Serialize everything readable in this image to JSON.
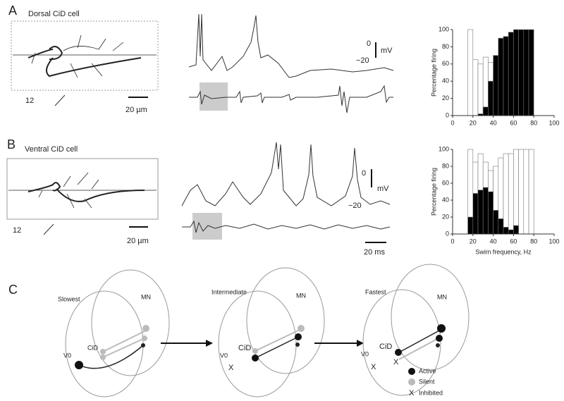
{
  "panel_a": {
    "letter": "A",
    "cell": "Dorsal CiD cell",
    "segment": "12",
    "scale": "20 µm",
    "v_top": "0",
    "v_bottom": "−20",
    "v_unit": "mV"
  },
  "panel_b": {
    "letter": "B",
    "cell": "Ventral CiD cell",
    "segment": "12",
    "scale": "20 µm",
    "v_top": "0",
    "v_bottom": "−20",
    "v_unit": "mV",
    "time_scale": "20 ms"
  },
  "panel_c": {
    "letter": "C",
    "diagrams": [
      {
        "title": "Slowest",
        "mn": "MN",
        "cid": "CiD",
        "v0": "V0"
      },
      {
        "title": "Intermediate",
        "mn": "MN",
        "cid": "CiD",
        "v0": "V0",
        "inhibited": "X"
      },
      {
        "title": "Fastest",
        "mn": "MN",
        "cid": "CiD",
        "v0": "V0",
        "inhibited": "X",
        "cid_inhibited": "X"
      }
    ],
    "legend": {
      "active": "Active",
      "silent": "Silent",
      "inhibited_mark": "X",
      "inhibited": "Inhibited"
    }
  },
  "chart_data": [
    {
      "type": "histogram",
      "ylabel": "Percentage firing",
      "bins": [
        15,
        20,
        25,
        30,
        35,
        40,
        45,
        50,
        55,
        60,
        65,
        70,
        75,
        80
      ],
      "series": [
        {
          "color": "#ffffff",
          "values": [
            100,
            65,
            60,
            68,
            62,
            45,
            40,
            30,
            20,
            15,
            10,
            5,
            0
          ]
        },
        {
          "color": "#000000",
          "values": [
            0,
            0,
            2,
            10,
            40,
            70,
            90,
            92,
            97,
            100,
            100,
            100,
            100
          ]
        }
      ],
      "xlim": [
        0,
        100
      ],
      "xticks": [
        0,
        20,
        40,
        60,
        80,
        100
      ],
      "ylim": [
        0,
        100
      ],
      "yticks": [
        0,
        20,
        40,
        60,
        80,
        100
      ]
    },
    {
      "type": "histogram",
      "ylabel": "Percentage firing",
      "xlabel": "Swim frequency, Hz",
      "bins": [
        15,
        20,
        25,
        30,
        35,
        40,
        45,
        50,
        55,
        60,
        65,
        70,
        75,
        80
      ],
      "series": [
        {
          "color": "#ffffff",
          "values": [
            100,
            85,
            95,
            85,
            75,
            80,
            90,
            95,
            95,
            100,
            100,
            100,
            100
          ]
        },
        {
          "color": "#000000",
          "values": [
            20,
            48,
            52,
            55,
            50,
            28,
            18,
            8,
            5,
            10,
            0,
            0,
            0
          ]
        }
      ],
      "xlim": [
        0,
        100
      ],
      "xticks": [
        0,
        20,
        40,
        60,
        80,
        100
      ],
      "ylim": [
        0,
        100
      ],
      "yticks": [
        0,
        20,
        40,
        60,
        80,
        100
      ]
    }
  ]
}
